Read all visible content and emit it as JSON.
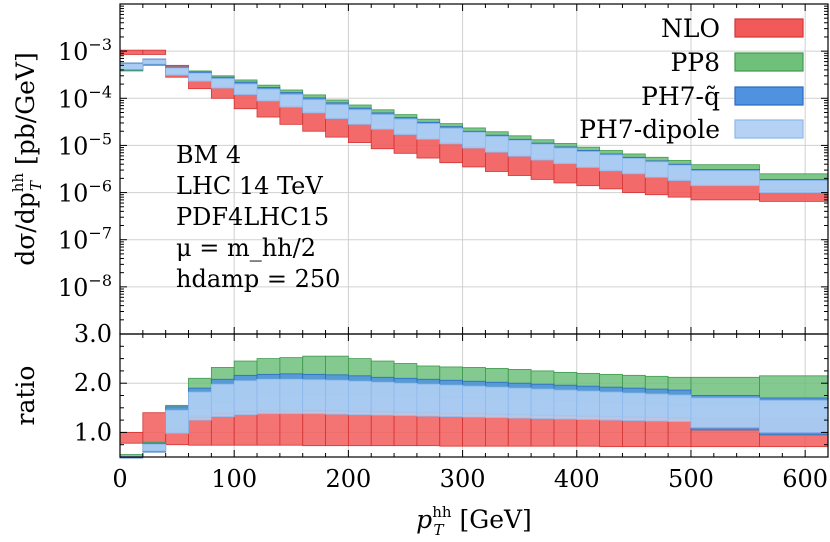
{
  "chart_data": {
    "type": "area",
    "xlabel": "p_T^hh [GeV]",
    "xlim": [
      0,
      620
    ],
    "x_ticks": [
      0,
      100,
      200,
      300,
      400,
      500,
      600
    ],
    "x_tick_labels": [
      "0",
      "100",
      "200",
      "300",
      "400",
      "500",
      "600"
    ],
    "top_panel": {
      "ylabel": "dσ/dp_T^hh [pb/GeV]",
      "yscale": "log",
      "ylim": [
        1e-09,
        0.01
      ],
      "y_ticks": [
        1e-08,
        1e-07,
        1e-06,
        1e-05,
        0.0001,
        0.001
      ],
      "y_tick_labels": [
        "10^-8",
        "10^-7",
        "10^-6",
        "10^-5",
        "10^-4",
        "10^-3"
      ]
    },
    "ratio_panel": {
      "ylabel": "ratio",
      "ylim": [
        0.5,
        3.0
      ],
      "y_ticks": [
        1.0,
        2.0,
        3.0
      ],
      "y_tick_labels": [
        "1.0",
        "2.0",
        "3.0"
      ]
    },
    "bin_edges": [
      0,
      20,
      40,
      60,
      80,
      100,
      120,
      140,
      160,
      180,
      200,
      220,
      240,
      260,
      280,
      300,
      320,
      340,
      360,
      380,
      400,
      420,
      440,
      460,
      480,
      500,
      560,
      620
    ],
    "series": [
      {
        "name": "NLO",
        "color": "#f25a5a",
        "edge": "#d33434",
        "lo": [
          0.00085,
          0.00085,
          0.00028,
          0.00016,
          0.0001,
          6e-05,
          4e-05,
          2.8e-05,
          2e-05,
          1.5e-05,
          1.15e-05,
          8.5e-06,
          6.8e-06,
          5.4e-06,
          4.3e-06,
          3.5e-06,
          2.8e-06,
          2.3e-06,
          1.9e-06,
          1.6e-06,
          1.4e-06,
          1.2e-06,
          1e-06,
          9e-07,
          8e-07,
          7e-07,
          6.5e-07
        ],
        "hi": [
          0.00105,
          0.00105,
          0.0005,
          0.00032,
          0.00021,
          0.000135,
          9.5e-05,
          6.8e-05,
          5e-05,
          3.8e-05,
          3e-05,
          2.3e-05,
          1.8e-05,
          1.45e-05,
          1.15e-05,
          9.5e-06,
          7.8e-06,
          6.5e-06,
          5.4e-06,
          4.6e-06,
          3.9e-06,
          3.3e-06,
          2.8e-06,
          2.45e-06,
          2.15e-06,
          1.9e-06,
          1.6e-06
        ],
        "ratio_lo": [
          0.78,
          0.75,
          0.75,
          0.74,
          0.74,
          0.74,
          0.74,
          0.74,
          0.73,
          0.73,
          0.73,
          0.73,
          0.73,
          0.73,
          0.72,
          0.72,
          0.72,
          0.72,
          0.72,
          0.72,
          0.72,
          0.71,
          0.71,
          0.71,
          0.71,
          0.71,
          0.71
        ],
        "ratio_hi": [
          1.0,
          1.4,
          1.3,
          1.35,
          1.38,
          1.4,
          1.42,
          1.43,
          1.44,
          1.44,
          1.43,
          1.42,
          1.41,
          1.4,
          1.39,
          1.38,
          1.37,
          1.36,
          1.35,
          1.34,
          1.33,
          1.32,
          1.31,
          1.3,
          1.3,
          1.3,
          1.3
        ]
      },
      {
        "name": "PP8",
        "color": "#6fc07b",
        "edge": "#3d9a4c",
        "lo": [
          0.00038,
          0.0005,
          0.00033,
          0.00026,
          0.00019,
          0.000145,
          0.000105,
          7.8e-05,
          5.8e-05,
          4.4e-05,
          3.3e-05,
          2.6e-05,
          2.05e-05,
          1.65e-05,
          1.32e-05,
          1.08e-05,
          8.8e-06,
          7.2e-06,
          6e-06,
          5e-06,
          4.2e-06,
          3.6e-06,
          3e-06,
          2.6e-06,
          2.25e-06,
          1.8e-06,
          1.6e-06
        ],
        "hi": [
          0.0005,
          0.00065,
          0.00046,
          0.00038,
          0.0003,
          0.000245,
          0.00019,
          0.00015,
          0.000118,
          9.2e-05,
          7.2e-05,
          5.7e-05,
          4.5e-05,
          3.6e-05,
          2.9e-05,
          2.35e-05,
          1.95e-05,
          1.6e-05,
          1.32e-05,
          1.1e-05,
          9.2e-06,
          7.8e-06,
          6.6e-06,
          5.6e-06,
          4.8e-06,
          3.9e-06,
          2.5e-06
        ],
        "ratio_lo": [
          0.42,
          0.62,
          1.1,
          1.48,
          1.6,
          1.68,
          1.72,
          1.74,
          1.75,
          1.75,
          1.75,
          1.74,
          1.73,
          1.72,
          1.71,
          1.7,
          1.69,
          1.68,
          1.66,
          1.64,
          1.62,
          1.6,
          1.58,
          1.56,
          1.55,
          1.56,
          1.58
        ],
        "ratio_hi": [
          0.55,
          0.8,
          1.55,
          2.1,
          2.32,
          2.45,
          2.5,
          2.52,
          2.55,
          2.55,
          2.5,
          2.45,
          2.4,
          2.35,
          2.33,
          2.32,
          2.3,
          2.28,
          2.25,
          2.22,
          2.2,
          2.18,
          2.16,
          2.14,
          2.12,
          2.12,
          2.15
        ]
      },
      {
        "name": "PH7-q̃",
        "color": "#4f93e0",
        "edge": "#2a6cbf",
        "lo": [
          0.0004,
          0.00052,
          0.00032,
          0.00024,
          0.000175,
          0.00013,
          9.5e-05,
          7e-05,
          5.2e-05,
          3.9e-05,
          3e-05,
          2.3e-05,
          1.8e-05,
          1.45e-05,
          1.16e-05,
          9.4e-06,
          7.7e-06,
          6.3e-06,
          5.2e-06,
          4.3e-06,
          3.6e-06,
          3.05e-06,
          2.6e-06,
          2.2e-06,
          1.9e-06,
          1.5e-06,
          1.1e-06
        ],
        "hi": [
          0.00056,
          0.00068,
          0.00046,
          0.00036,
          0.00028,
          0.00022,
          0.00017,
          0.000132,
          0.000102,
          8e-05,
          6.2e-05,
          4.9e-05,
          3.9e-05,
          3.1e-05,
          2.5e-05,
          2e-05,
          1.65e-05,
          1.35e-05,
          1.12e-05,
          9.3e-06,
          7.8e-06,
          6.6e-06,
          5.6e-06,
          4.7e-06,
          4e-06,
          3.1e-06,
          1.9e-06
        ],
        "ratio_lo": [
          0.38,
          0.6,
          1.0,
          1.3,
          1.38,
          1.42,
          1.44,
          1.45,
          1.45,
          1.44,
          1.43,
          1.42,
          1.41,
          1.4,
          1.39,
          1.38,
          1.37,
          1.36,
          1.35,
          1.34,
          1.33,
          1.32,
          1.31,
          1.3,
          1.29,
          1.05,
          0.95
        ],
        "ratio_hi": [
          0.5,
          0.78,
          1.52,
          1.9,
          2.08,
          2.16,
          2.18,
          2.19,
          2.18,
          2.17,
          2.15,
          2.12,
          2.1,
          2.08,
          2.06,
          2.04,
          2.02,
          2.0,
          1.98,
          1.96,
          1.94,
          1.92,
          1.9,
          1.88,
          1.86,
          1.75,
          1.7
        ]
      },
      {
        "name": "PH7-dipole",
        "color": "#b5d2f5",
        "edge": "#8db8ec",
        "lo": [
          0.00041,
          0.00053,
          0.00031,
          0.00023,
          0.000165,
          0.00012,
          8.8e-05,
          6.5e-05,
          4.9e-05,
          3.7e-05,
          2.8e-05,
          2.2e-05,
          1.7e-05,
          1.35e-05,
          1.08e-05,
          8.8e-06,
          7.2e-06,
          5.9e-06,
          4.9e-06,
          4.1e-06,
          3.4e-06,
          2.9e-06,
          2.5e-06,
          2.1e-06,
          1.8e-06,
          1.4e-06,
          1e-06
        ],
        "hi": [
          0.00054,
          0.00066,
          0.00044,
          0.00034,
          0.00026,
          0.0002,
          0.000155,
          0.00012,
          9.3e-05,
          7.3e-05,
          5.7e-05,
          4.5e-05,
          3.6e-05,
          2.9e-05,
          2.3e-05,
          1.9e-05,
          1.55e-05,
          1.28e-05,
          1.06e-05,
          8.8e-06,
          7.4e-06,
          6.3e-06,
          5.3e-06,
          4.5e-06,
          3.8e-06,
          2.9e-06,
          1.8e-06
        ],
        "ratio_lo": [
          0.4,
          0.62,
          0.98,
          1.25,
          1.32,
          1.36,
          1.38,
          1.38,
          1.38,
          1.37,
          1.36,
          1.35,
          1.34,
          1.33,
          1.32,
          1.31,
          1.3,
          1.29,
          1.28,
          1.27,
          1.26,
          1.25,
          1.24,
          1.23,
          1.22,
          1.1,
          1.0
        ],
        "ratio_hi": [
          0.52,
          0.76,
          1.45,
          1.82,
          1.98,
          2.05,
          2.08,
          2.08,
          2.07,
          2.06,
          2.04,
          2.02,
          2.0,
          1.98,
          1.96,
          1.94,
          1.92,
          1.9,
          1.88,
          1.86,
          1.84,
          1.82,
          1.8,
          1.78,
          1.76,
          1.7,
          1.65
        ]
      }
    ],
    "legend": {
      "placement": "top-right",
      "entries": [
        {
          "label": "NLO",
          "series": 0
        },
        {
          "label": "PP8",
          "series": 1
        },
        {
          "label": "PH7-q̃",
          "series": 2
        },
        {
          "label": "PH7-dipole",
          "series": 3
        }
      ]
    },
    "annotations": {
      "placement": "left",
      "lines": [
        "BM 4",
        "LHC 14 TeV",
        "PDF4LHC15",
        "μ = m_hh/2",
        "hdamp = 250"
      ]
    },
    "grid": true
  }
}
